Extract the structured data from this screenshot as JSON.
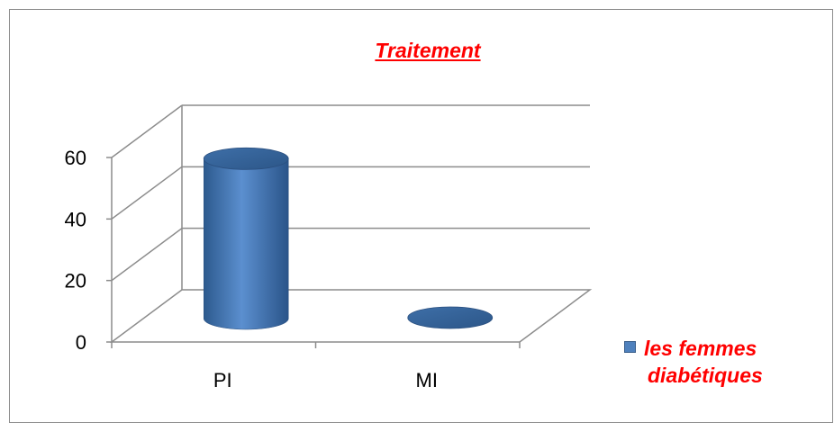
{
  "chart_data": {
    "type": "bar",
    "style": "3d-cylinder",
    "title": "Traitement",
    "categories": [
      "PI",
      "MI"
    ],
    "series": [
      {
        "name": "les femmes diabétiques",
        "values": [
          52,
          0.3
        ],
        "color": "#4f81bd"
      }
    ],
    "ylim": [
      0,
      60
    ],
    "yticks": [
      0,
      20,
      40,
      60
    ],
    "xlabel": "",
    "ylabel": "",
    "grid": true,
    "legend_position": "right",
    "title_color": "#ff0000",
    "legend_text_color": "#ff0000"
  },
  "legend": {
    "label_line1": "les femmes",
    "label_line2": "diabétiques"
  }
}
